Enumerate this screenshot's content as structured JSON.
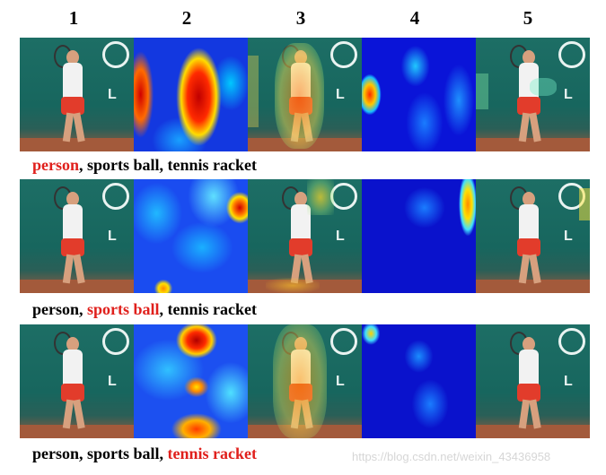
{
  "column_numbers": [
    "1",
    "2",
    "3",
    "4",
    "5"
  ],
  "rows": [
    {
      "caption_parts": [
        {
          "text": "person",
          "highlight": true
        },
        {
          "text": ", sports ball, tennis racket",
          "highlight": false
        }
      ]
    },
    {
      "caption_parts": [
        {
          "text": "person, ",
          "highlight": false
        },
        {
          "text": "sports ball",
          "highlight": true
        },
        {
          "text": ", tennis racket",
          "highlight": false
        }
      ]
    },
    {
      "caption_parts": [
        {
          "text": "person, sports ball, ",
          "highlight": false
        },
        {
          "text": "tennis racket",
          "highlight": true
        }
      ]
    }
  ],
  "watermark": "https://blog.csdn.net/weixin_43436958",
  "colors": {
    "highlight": "#e0201c",
    "text": "#000000"
  }
}
